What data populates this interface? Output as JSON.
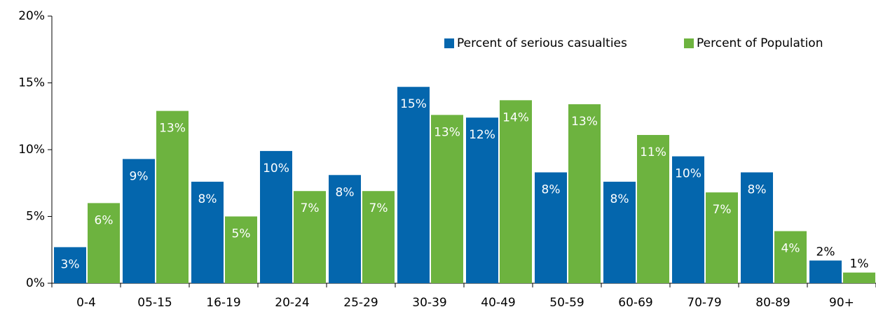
{
  "chart_data": {
    "type": "bar",
    "categories": [
      "0-4",
      "05-15",
      "16-19",
      "20-24",
      "25-29",
      "30-39",
      "40-49",
      "50-59",
      "60-69",
      "70-79",
      "80-89",
      "90+"
    ],
    "series": [
      {
        "name": "Percent of serious casualties",
        "color": "#0466ad",
        "values": [
          2.7,
          9.3,
          7.6,
          9.9,
          8.1,
          14.7,
          12.4,
          8.3,
          7.6,
          9.5,
          8.3,
          1.7
        ],
        "value_labels": [
          "3%",
          "9%",
          "8%",
          "10%",
          "8%",
          "15%",
          "12%",
          "8%",
          "8%",
          "10%",
          "8%",
          "2%"
        ]
      },
      {
        "name": "Percent of Population",
        "color": "#6db33f",
        "values": [
          6.0,
          12.9,
          5.0,
          6.9,
          6.9,
          12.6,
          13.7,
          13.4,
          11.1,
          6.8,
          3.9,
          0.8
        ],
        "value_labels": [
          "6%",
          "13%",
          "5%",
          "7%",
          "7%",
          "13%",
          "14%",
          "13%",
          "11%",
          "7%",
          "4%",
          "1%"
        ]
      }
    ],
    "ylim": [
      0,
      20
    ],
    "yticks": [
      {
        "value": 0,
        "label": "0%"
      },
      {
        "value": 5,
        "label": "5%"
      },
      {
        "value": 10,
        "label": "10%"
      },
      {
        "value": 15,
        "label": "15%"
      },
      {
        "value": 20,
        "label": "20%"
      }
    ],
    "grid": false,
    "legend": "upper right"
  }
}
